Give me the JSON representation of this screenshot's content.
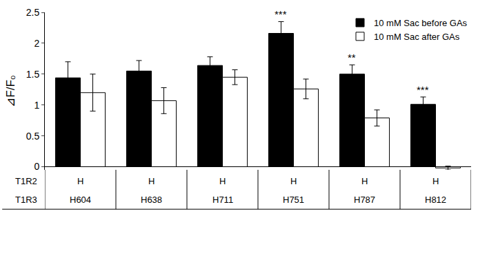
{
  "chart_data": {
    "type": "bar",
    "y_label": "⊿F/F₀",
    "categories": [
      "H604",
      "H638",
      "H711",
      "H751",
      "H787",
      "H812"
    ],
    "category_rows": [
      {
        "label": "T1R2",
        "values": [
          "H",
          "H",
          "H",
          "H",
          "H",
          "H"
        ]
      },
      {
        "label": "T1R3",
        "values": [
          "H604",
          "H638",
          "H711",
          "H751",
          "H787",
          "H812"
        ]
      }
    ],
    "series": [
      {
        "name": "10 mM Sac before GAs",
        "color": "#000000",
        "values": [
          1.44,
          1.55,
          1.64,
          2.16,
          1.5,
          1.01
        ],
        "errors": [
          0.26,
          0.17,
          0.14,
          0.19,
          0.15,
          0.12
        ]
      },
      {
        "name": "10 mM Sac after GAs",
        "color": "#ffffff",
        "values": [
          1.2,
          1.07,
          1.45,
          1.26,
          0.79,
          -0.02
        ],
        "errors": [
          0.3,
          0.21,
          0.12,
          0.16,
          0.13,
          0.03
        ]
      }
    ],
    "annotations": [
      {
        "category": "H751",
        "series": "10 mM Sac before GAs",
        "text": "***"
      },
      {
        "category": "H787",
        "series": "10 mM Sac before GAs",
        "text": "**"
      },
      {
        "category": "H812",
        "series": "10 mM Sac before GAs",
        "text": "***"
      }
    ],
    "ylim": [
      -0.05,
      2.5
    ],
    "yticks": [
      0,
      0.5,
      1,
      1.5,
      2,
      2.5
    ],
    "grid": false,
    "legend": "top right"
  }
}
